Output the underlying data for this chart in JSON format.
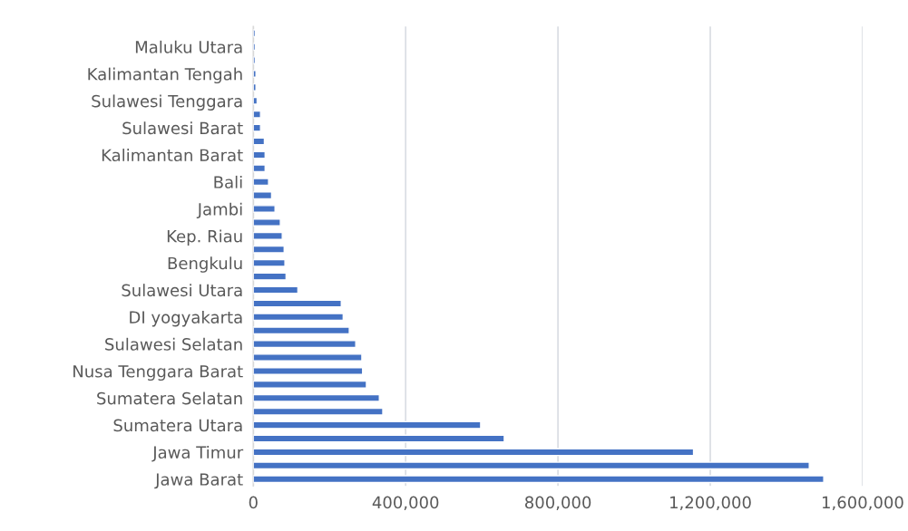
{
  "chart_data": {
    "type": "bar",
    "orientation": "horizontal",
    "categories": [
      null,
      "Maluku Utara",
      null,
      "Kalimantan Tengah",
      null,
      "Sulawesi Tenggara",
      null,
      "Sulawesi Barat",
      null,
      "Kalimantan Barat",
      null,
      "Bali",
      null,
      "Jambi",
      null,
      "Kep. Riau",
      null,
      "Bengkulu",
      null,
      "Sulawesi Utara",
      null,
      "DI yogyakarta",
      null,
      "Sulawesi Selatan",
      null,
      "Nusa Tenggara Barat",
      null,
      "Sumatera Selatan",
      null,
      "Sumatera Utara",
      null,
      "Jawa Timur",
      null,
      "Jawa Barat"
    ],
    "values": [
      5000,
      5000,
      5000,
      7000,
      7000,
      10000,
      19000,
      19000,
      29000,
      31000,
      31000,
      40000,
      48000,
      57000,
      71000,
      76000,
      81000,
      83000,
      86000,
      117000,
      231000,
      236000,
      252000,
      269000,
      285000,
      287000,
      297000,
      331000,
      340000,
      597000,
      659000,
      1156000,
      1460000,
      1498000
    ],
    "color": "#4472c4",
    "xlim": [
      0,
      1600000
    ],
    "xticks": [
      {
        "value": 0,
        "label": "0"
      },
      {
        "value": 400000,
        "label": "400,000"
      },
      {
        "value": 800000,
        "label": "800,000"
      },
      {
        "value": 1200000,
        "label": "1,200,000"
      },
      {
        "value": 1600000,
        "label": "1,600,000"
      }
    ],
    "grid": "x"
  }
}
